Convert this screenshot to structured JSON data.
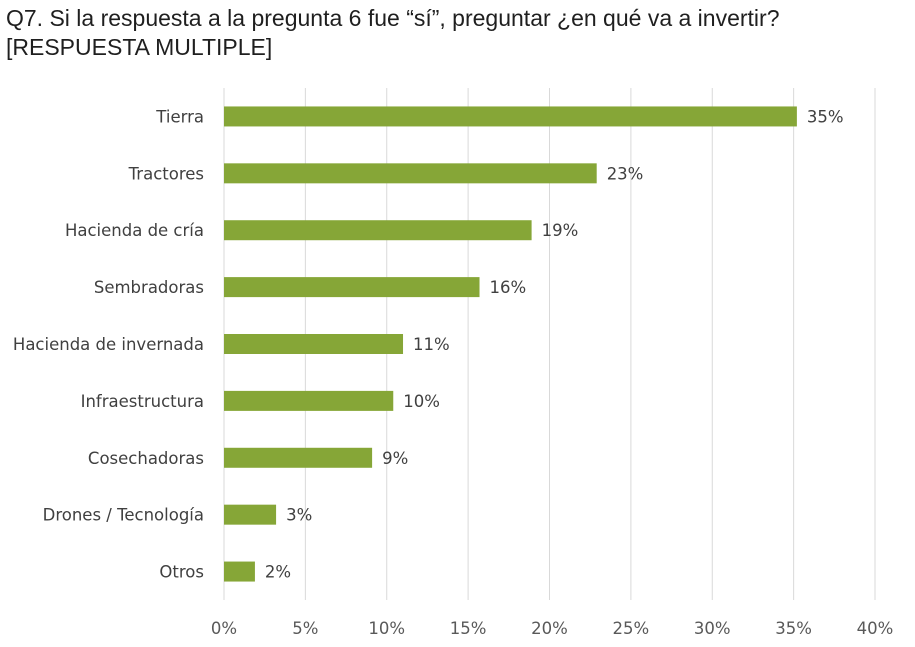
{
  "chart_data": {
    "type": "bar",
    "orientation": "horizontal",
    "title_line1": "Q7. Si la respuesta a la pregunta 6 fue “sí”, preguntar ¿en qué va a invertir?",
    "title_line2": "[RESPUESTA MULTIPLE]",
    "categories": [
      "Tierra",
      "Tractores",
      "Hacienda de cría",
      "Sembradoras",
      "Hacienda de invernada",
      "Infraestructura",
      "Cosechadoras",
      "Drones / Tecnología",
      "Otros"
    ],
    "values": [
      35.2,
      22.9,
      18.9,
      15.7,
      11.0,
      10.4,
      9.1,
      3.2,
      1.9
    ],
    "data_labels": [
      "35%",
      "23%",
      "19%",
      "16%",
      "11%",
      "10%",
      "9%",
      "3%",
      "2%"
    ],
    "xlim": [
      0,
      40
    ],
    "ticks": [
      0,
      5,
      10,
      15,
      20,
      25,
      30,
      35,
      40
    ],
    "tick_labels": [
      "0%",
      "5%",
      "10%",
      "15%",
      "20%",
      "25%",
      "30%",
      "35%",
      "40%"
    ],
    "grid": "vertical",
    "legend": "none",
    "bar_color": "#86a637",
    "grid_color": "#d9d9d9"
  }
}
